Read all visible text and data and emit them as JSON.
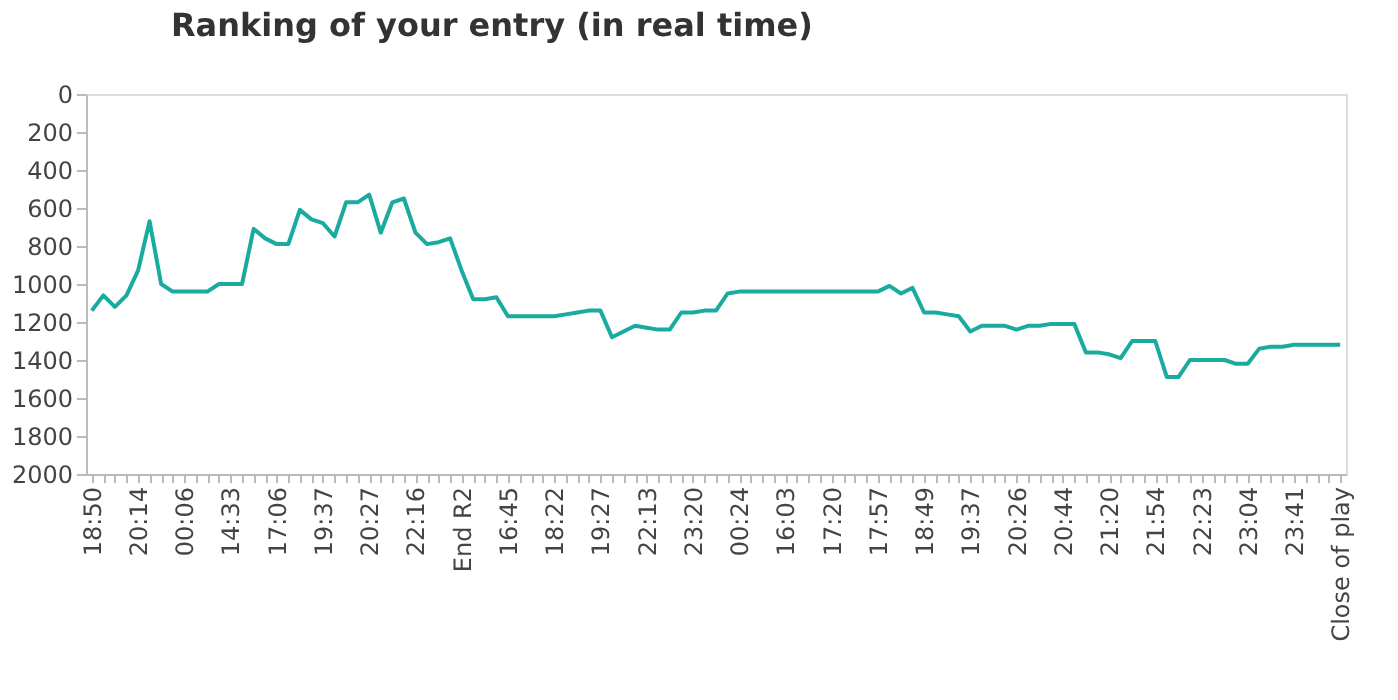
{
  "chart_data": {
    "type": "line",
    "title": "Ranking of your entry (in real time)",
    "categories": [
      "18:50",
      null,
      null,
      null,
      "20:14",
      null,
      null,
      null,
      "00:06",
      null,
      null,
      null,
      "14:33",
      null,
      null,
      null,
      "17:06",
      null,
      null,
      null,
      "19:37",
      null,
      null,
      null,
      "20:27",
      null,
      null,
      null,
      "22:16",
      null,
      null,
      null,
      "End R2",
      null,
      null,
      null,
      "16:45",
      null,
      null,
      null,
      "18:22",
      null,
      null,
      null,
      "19:27",
      null,
      null,
      null,
      "22:13",
      null,
      null,
      null,
      "23:20",
      null,
      null,
      null,
      "00:24",
      null,
      null,
      null,
      "16:03",
      null,
      null,
      null,
      "17:20",
      null,
      null,
      null,
      "17:57",
      null,
      null,
      null,
      "18:49",
      null,
      null,
      null,
      "19:37",
      null,
      null,
      null,
      "20:26",
      null,
      null,
      null,
      "20:44",
      null,
      null,
      null,
      "21:20",
      null,
      null,
      null,
      "21:54",
      null,
      null,
      null,
      "22:23",
      null,
      null,
      null,
      "23:04",
      null,
      null,
      null,
      "23:41",
      null,
      null,
      null,
      "Close of play"
    ],
    "series": [
      {
        "color": "#1aaba0",
        "values": [
          1140,
          1060,
          1120,
          1060,
          930,
          670,
          1000,
          1040,
          1040,
          1040,
          1040,
          1000,
          1000,
          1000,
          710,
          760,
          790,
          790,
          610,
          660,
          680,
          750,
          570,
          570,
          530,
          730,
          570,
          550,
          730,
          790,
          780,
          760,
          930,
          1080,
          1080,
          1070,
          1170,
          1170,
          1170,
          1170,
          1170,
          1160,
          1150,
          1140,
          1140,
          1280,
          1250,
          1220,
          1230,
          1240,
          1240,
          1150,
          1150,
          1140,
          1140,
          1050,
          1040,
          1040,
          1040,
          1040,
          1040,
          1040,
          1040,
          1040,
          1040,
          1040,
          1040,
          1040,
          1040,
          1010,
          1050,
          1020,
          1150,
          1150,
          1160,
          1170,
          1250,
          1220,
          1220,
          1220,
          1240,
          1220,
          1220,
          1210,
          1210,
          1210,
          1360,
          1360,
          1370,
          1390,
          1300,
          1300,
          1300,
          1490,
          1490,
          1400,
          1400,
          1400,
          1400,
          1420,
          1420,
          1340,
          1330,
          1330,
          1320,
          1320,
          1320,
          1320,
          1320
        ]
      }
    ],
    "ylim": [
      2000,
      0
    ],
    "yticks": [
      0,
      200,
      400,
      600,
      800,
      1000,
      1200,
      1400,
      1600,
      1800,
      2000
    ],
    "grid": false,
    "legend": false,
    "marker": "none",
    "line_style": "solid"
  }
}
